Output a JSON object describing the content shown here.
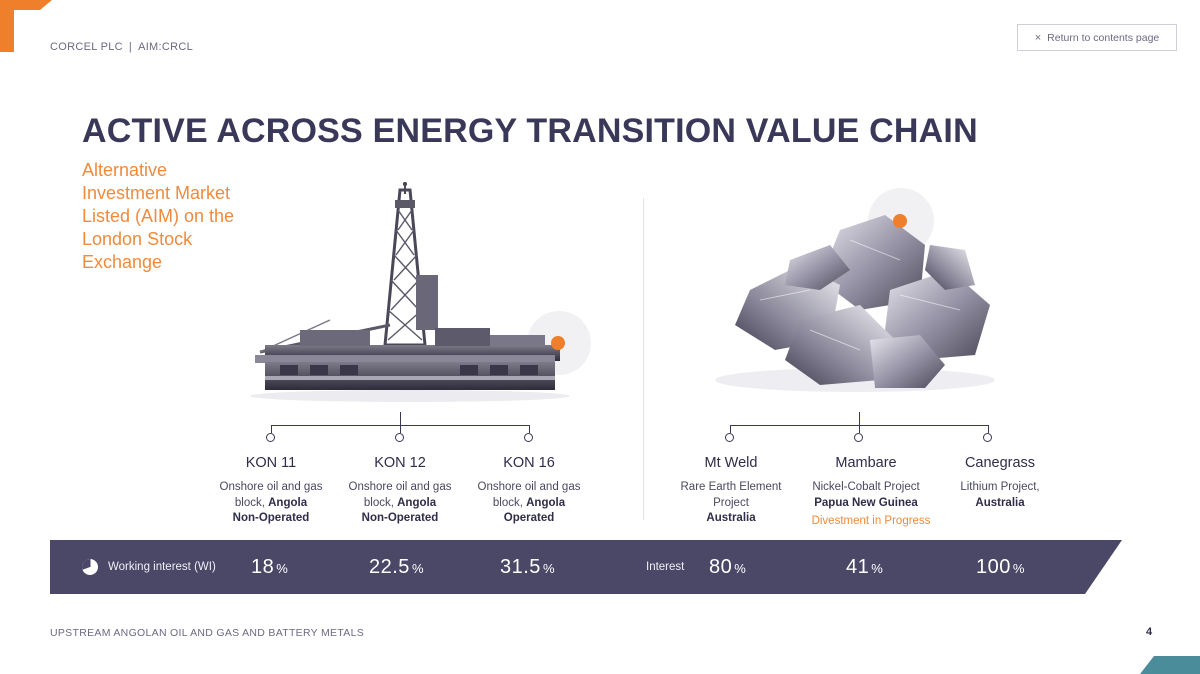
{
  "header": {
    "company": "CORCEL PLC",
    "ticker": "AIM:CRCL",
    "return_label": "Return to contents page"
  },
  "title": "ACTIVE ACROSS ENERGY TRANSITION VALUE CHAIN",
  "subtitle": "Alternative Investment Market Listed (AIM) on the London Stock Exchange",
  "oil_gas": {
    "projects": [
      {
        "name": "KON 11",
        "line1": "Onshore oil and gas",
        "line2_pre": "block, ",
        "line2_bold": "Angola",
        "line3_bold": "Non-Operated"
      },
      {
        "name": "KON 12",
        "line1": "Onshore oil and gas",
        "line2_pre": "block, ",
        "line2_bold": "Angola",
        "line3_bold": "Non-Operated"
      },
      {
        "name": "KON 16",
        "line1": "Onshore oil and gas",
        "line2_pre": "block, ",
        "line2_bold": "Angola",
        "line3_bold": "Operated"
      }
    ]
  },
  "metals": {
    "projects": [
      {
        "name": "Mt Weld",
        "line1": "Rare Earth Element",
        "line2": "Project",
        "line3_bold": "Australia",
        "status": ""
      },
      {
        "name": "Mambare",
        "line1": "Nickel-Cobalt Project",
        "line2": "",
        "line3_bold": "Papua New Guinea",
        "status": "Divestment in Progress"
      },
      {
        "name": "Canegrass",
        "line1": "Lithium Project,",
        "line2": "",
        "line3_bold": "Australia",
        "status": ""
      }
    ]
  },
  "band": {
    "wi_label": "Working interest (WI)",
    "wi_values": [
      "18",
      "22.5",
      "31.5"
    ],
    "interest_label": "Interest",
    "interest_values": [
      "80",
      "41",
      "100"
    ],
    "pct_symbol": "%"
  },
  "footer": {
    "text": "UPSTREAM ANGOLAN OIL AND GAS AND BATTERY METALS",
    "page": "4"
  },
  "colors": {
    "navy": "#4a4767",
    "orange": "#f07f2c",
    "teal": "#4a8c99"
  }
}
